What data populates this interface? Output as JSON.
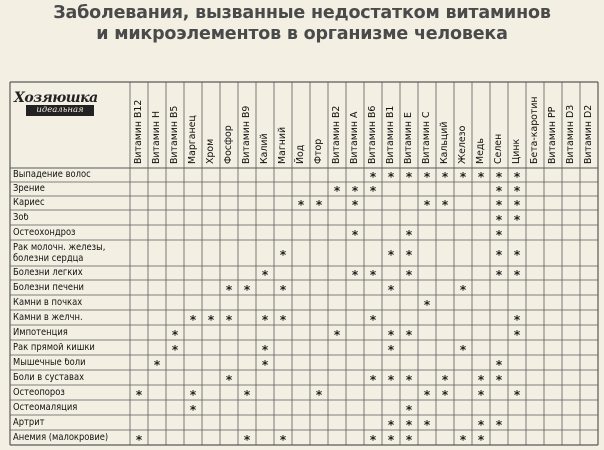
{
  "title": {
    "line1": "Заболевания, вызванные недостатком витаминов",
    "line2": "и микроэлементов в организме человека"
  },
  "logo": {
    "name": "Хозяюшка",
    "tagline": "идеальная"
  },
  "columns": [
    "Витамин B12",
    "Витамин H",
    "Витамин B5",
    "Марганец",
    "Хром",
    "Фосфор",
    "Витамин B9",
    "Калий",
    "Магний",
    "Йод",
    "Фтор",
    "Витамин B2",
    "Витамин A",
    "Витамин B6",
    "Витамин B1",
    "Витамин E",
    "Витамин C",
    "Кальций",
    "Железо",
    "Медь",
    "Селен",
    "Цинк",
    "Бета-каротин",
    "Витамин PP",
    "Витамин D3",
    "Витамин D2"
  ],
  "rows": [
    {
      "label": "Выпадение волос",
      "marks": [
        13,
        14,
        15,
        16,
        17,
        18,
        19,
        20,
        21
      ]
    },
    {
      "label": "Зрение",
      "marks": [
        11,
        12,
        13,
        20,
        21
      ]
    },
    {
      "label": "Кариес",
      "marks": [
        9,
        10,
        12,
        16,
        17,
        20,
        21
      ]
    },
    {
      "label": "Зоб",
      "marks": [
        20,
        21
      ]
    },
    {
      "label": "Остеохондроз",
      "marks": [
        12,
        15,
        20
      ]
    },
    {
      "label": "Рак молочн. железы, болезни сердца",
      "marks": [
        8,
        14,
        15,
        20,
        21
      ]
    },
    {
      "label": "Болезни легких",
      "marks": [
        7,
        12,
        13,
        15,
        20,
        21
      ]
    },
    {
      "label": "Болезни печени",
      "marks": [
        5,
        6,
        8,
        14,
        18
      ]
    },
    {
      "label": "Камни в почках",
      "marks": [
        16
      ]
    },
    {
      "label": "Камни в желчн.",
      "marks": [
        3,
        4,
        5,
        7,
        8,
        13,
        21
      ]
    },
    {
      "label": "Импотенция",
      "marks": [
        2,
        11,
        14,
        15,
        21
      ]
    },
    {
      "label": "Рак прямой кишки",
      "marks": [
        2,
        7,
        14,
        18
      ]
    },
    {
      "label": "Мышечные боли",
      "marks": [
        1,
        7,
        20
      ]
    },
    {
      "label": "Боли в суставах",
      "marks": [
        5,
        13,
        14,
        15,
        17,
        19,
        20
      ]
    },
    {
      "label": "Остеопороз",
      "marks": [
        0,
        3,
        6,
        10,
        16,
        17,
        19,
        21
      ]
    },
    {
      "label": "Остеомаляция",
      "marks": [
        3,
        15
      ]
    },
    {
      "label": "Артрит",
      "marks": [
        14,
        15,
        16,
        19,
        20
      ]
    },
    {
      "label": "Анемия (малокровие)",
      "marks": [
        0,
        6,
        8,
        13,
        14,
        15,
        18,
        19
      ]
    }
  ],
  "mark_symbol": "*",
  "colors": {
    "background": "#f3efe3",
    "grid": "#5a5a5a",
    "text": "#111111",
    "title": "#4a4a4a"
  }
}
